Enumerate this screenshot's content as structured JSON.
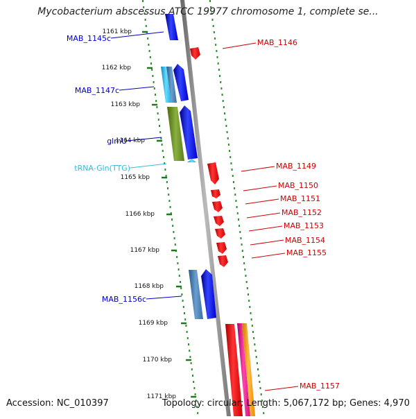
{
  "title": "Mycobacterium abscessus ATCC 19977 chromosome 1, complete se...",
  "footer": {
    "accession": "Accession: NC_010397",
    "summary": "Topology: circular; Length: 5,067,172 bp; Genes: 4,970"
  },
  "ticks": [
    "1161 kbp",
    "1162 kbp",
    "1163 kbp",
    "1164 kbp",
    "1165 kbp",
    "1166 kbp",
    "1167 kbp",
    "1168 kbp",
    "1169 kbp",
    "1170 kbp",
    "1171 kbp"
  ],
  "left_labels": [
    {
      "text": "MAB_1145c",
      "color": "#0000cc"
    },
    {
      "text": "MAB_1147c",
      "color": "#0000cc"
    },
    {
      "text": "glmU",
      "color": "#000099"
    },
    {
      "text": "tRNA-Gln(TTG)",
      "color": "#33bbdd"
    },
    {
      "text": "MAB_1156c",
      "color": "#0000cc"
    }
  ],
  "right_labels": [
    {
      "text": "MAB_1146",
      "color": "#cc0000"
    },
    {
      "text": "MAB_1149",
      "color": "#cc0000"
    },
    {
      "text": "MAB_1150",
      "color": "#cc0000"
    },
    {
      "text": "MAB_1151",
      "color": "#cc0000"
    },
    {
      "text": "MAB_1152",
      "color": "#cc0000"
    },
    {
      "text": "MAB_1153",
      "color": "#cc0000"
    },
    {
      "text": "MAB_1154",
      "color": "#cc0000"
    },
    {
      "text": "MAB_1155",
      "color": "#cc0000"
    },
    {
      "text": "MAB_1157",
      "color": "#cc0000"
    }
  ],
  "colors": {
    "backbone": "#8a8a8a",
    "track_dots": "#2e8b2e",
    "gene_blue": "#0000ff",
    "gene_red": "#ff0000",
    "gene_light_blue": "#33bbee",
    "gene_steel": "#4a7fb0",
    "gene_olive": "#6b8e23",
    "gene_magenta": "#ee1188",
    "gene_orange": "#ff9900"
  }
}
